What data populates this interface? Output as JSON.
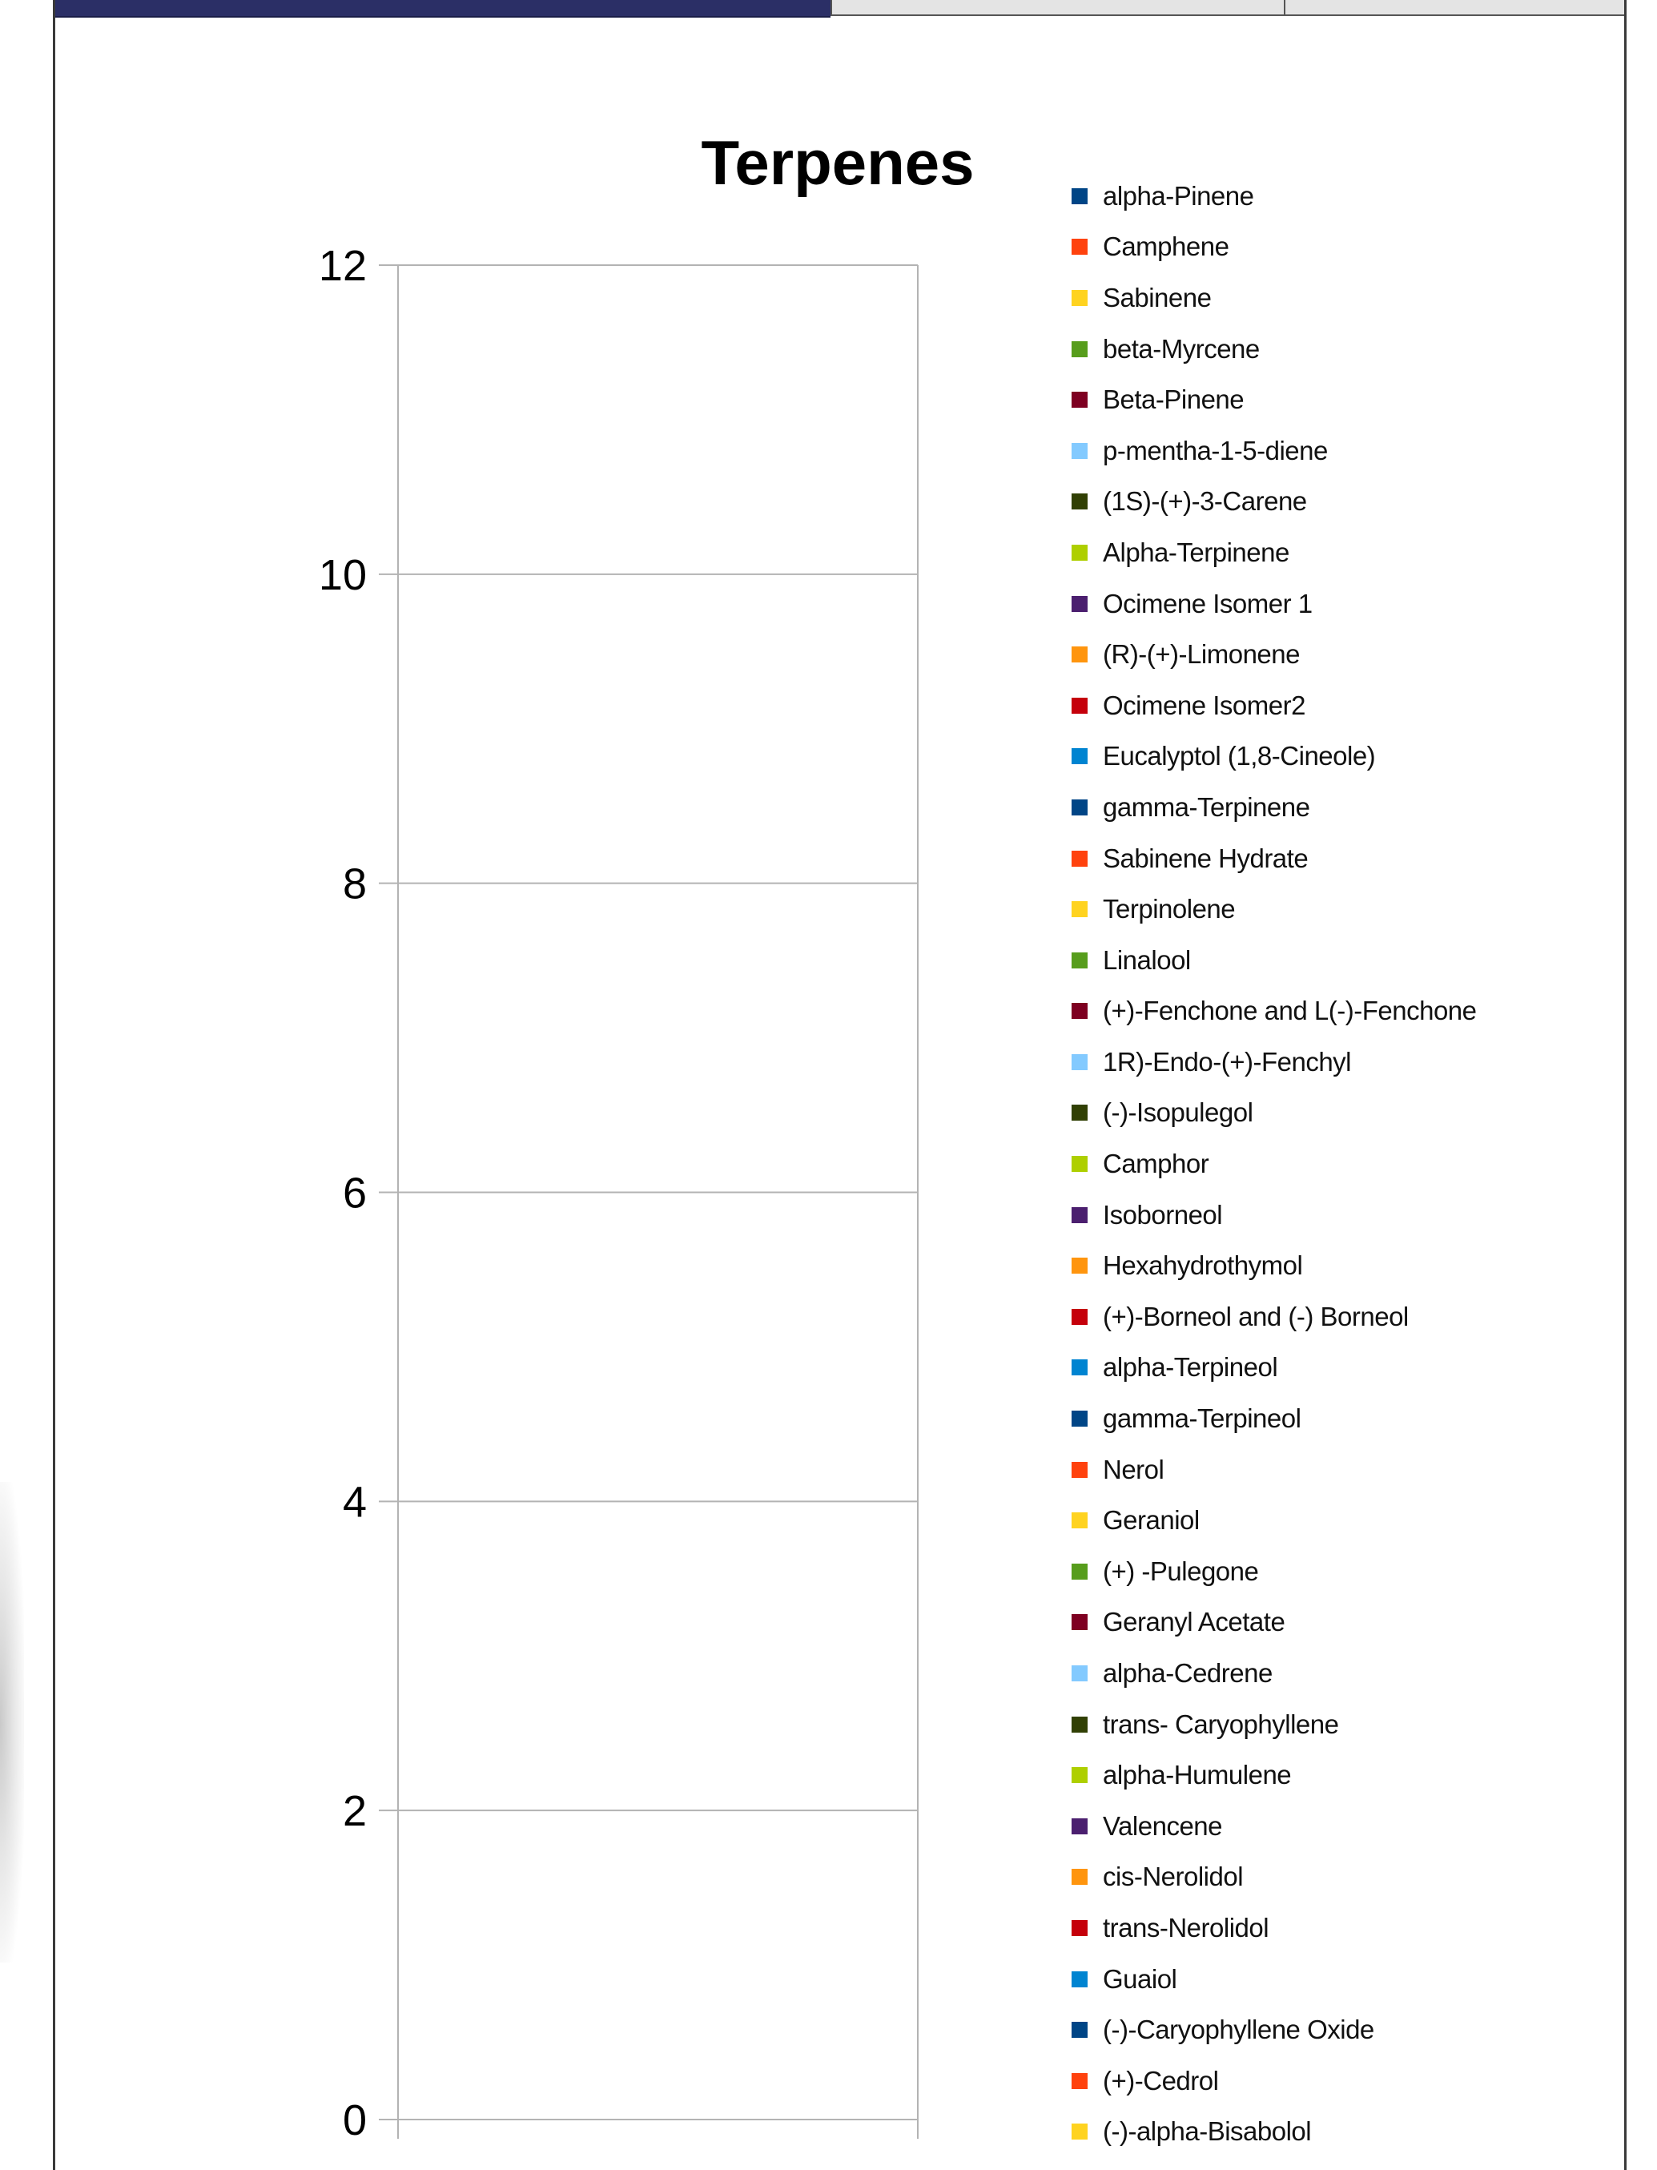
{
  "chart_data": {
    "type": "bar",
    "title": "Terpenes",
    "xlabel": "",
    "ylabel": "",
    "ylim": [
      0,
      12
    ],
    "yticks": [
      "0",
      "2",
      "4",
      "6",
      "8",
      "10",
      "12"
    ],
    "grid": true,
    "legend_position": "right",
    "categories": [
      ""
    ],
    "series": [
      {
        "name": "alpha-Pinene",
        "color": "#004586",
        "values": [
          0
        ]
      },
      {
        "name": "Camphene",
        "color": "#ff420e",
        "values": [
          0
        ]
      },
      {
        "name": "Sabinene",
        "color": "#ffd320",
        "values": [
          0
        ]
      },
      {
        "name": "beta-Myrcene",
        "color": "#579d1c",
        "values": [
          0
        ]
      },
      {
        "name": "Beta-Pinene",
        "color": "#7e0021",
        "values": [
          0
        ]
      },
      {
        "name": "p-mentha-1-5-diene",
        "color": "#83caff",
        "values": [
          0
        ]
      },
      {
        "name": "(1S)-(+)-3-Carene",
        "color": "#314004",
        "values": [
          0
        ]
      },
      {
        "name": "Alpha-Terpinene",
        "color": "#aecf00",
        "values": [
          0
        ]
      },
      {
        "name": "Ocimene Isomer 1",
        "color": "#4b1f6f",
        "values": [
          0
        ]
      },
      {
        "name": "(R)-(+)-Limonene",
        "color": "#ff950e",
        "values": [
          0
        ]
      },
      {
        "name": "Ocimene Isomer2",
        "color": "#c5000b",
        "values": [
          0
        ]
      },
      {
        "name": "Eucalyptol (1,8-Cineole)",
        "color": "#0084d1",
        "values": [
          0
        ]
      },
      {
        "name": "gamma-Terpinene",
        "color": "#004586",
        "values": [
          0
        ]
      },
      {
        "name": "Sabinene Hydrate",
        "color": "#ff420e",
        "values": [
          0
        ]
      },
      {
        "name": "Terpinolene",
        "color": "#ffd320",
        "values": [
          0
        ]
      },
      {
        "name": "Linalool",
        "color": "#579d1c",
        "values": [
          0
        ]
      },
      {
        "name": "(+)-Fenchone and L(-)-Fenchone",
        "color": "#7e0021",
        "values": [
          0
        ]
      },
      {
        "name": "1R)-Endo-(+)-Fenchyl",
        "color": "#83caff",
        "values": [
          0
        ]
      },
      {
        "name": " (-)-Isopulegol",
        "color": "#314004",
        "values": [
          0
        ]
      },
      {
        "name": "Camphor",
        "color": "#aecf00",
        "values": [
          0
        ]
      },
      {
        "name": "Isoborneol",
        "color": "#4b1f6f",
        "values": [
          0
        ]
      },
      {
        "name": "Hexahydrothymol",
        "color": "#ff950e",
        "values": [
          0
        ]
      },
      {
        "name": "(+)-Borneol and (-) Borneol",
        "color": "#c5000b",
        "values": [
          0
        ]
      },
      {
        "name": "alpha-Terpineol",
        "color": "#0084d1",
        "values": [
          0
        ]
      },
      {
        "name": "gamma-Terpineol",
        "color": "#004586",
        "values": [
          0
        ]
      },
      {
        "name": "Nerol",
        "color": "#ff420e",
        "values": [
          0
        ]
      },
      {
        "name": "Geraniol",
        "color": "#ffd320",
        "values": [
          0
        ]
      },
      {
        "name": " (+) -Pulegone",
        "color": "#579d1c",
        "values": [
          0
        ]
      },
      {
        "name": "Geranyl Acetate",
        "color": "#7e0021",
        "values": [
          0
        ]
      },
      {
        "name": "alpha-Cedrene",
        "color": "#83caff",
        "values": [
          0
        ]
      },
      {
        "name": "trans- Caryophyllene",
        "color": "#314004",
        "values": [
          0
        ]
      },
      {
        "name": "alpha-Humulene",
        "color": "#aecf00",
        "values": [
          0
        ]
      },
      {
        "name": "Valencene",
        "color": "#4b1f6f",
        "values": [
          0
        ]
      },
      {
        "name": "cis-Nerolidol",
        "color": "#ff950e",
        "values": [
          0
        ]
      },
      {
        "name": "trans-Nerolidol",
        "color": "#c5000b",
        "values": [
          0
        ]
      },
      {
        "name": "Guaiol",
        "color": "#0084d1",
        "values": [
          0
        ]
      },
      {
        "name": "(-)-Caryophyllene Oxide",
        "color": "#004586",
        "values": [
          0
        ]
      },
      {
        "name": "(+)-Cedrol",
        "color": "#ff420e",
        "values": [
          0
        ]
      },
      {
        "name": "(-)-alpha-Bisabolol",
        "color": "#ffd320",
        "values": [
          0
        ]
      }
    ]
  }
}
